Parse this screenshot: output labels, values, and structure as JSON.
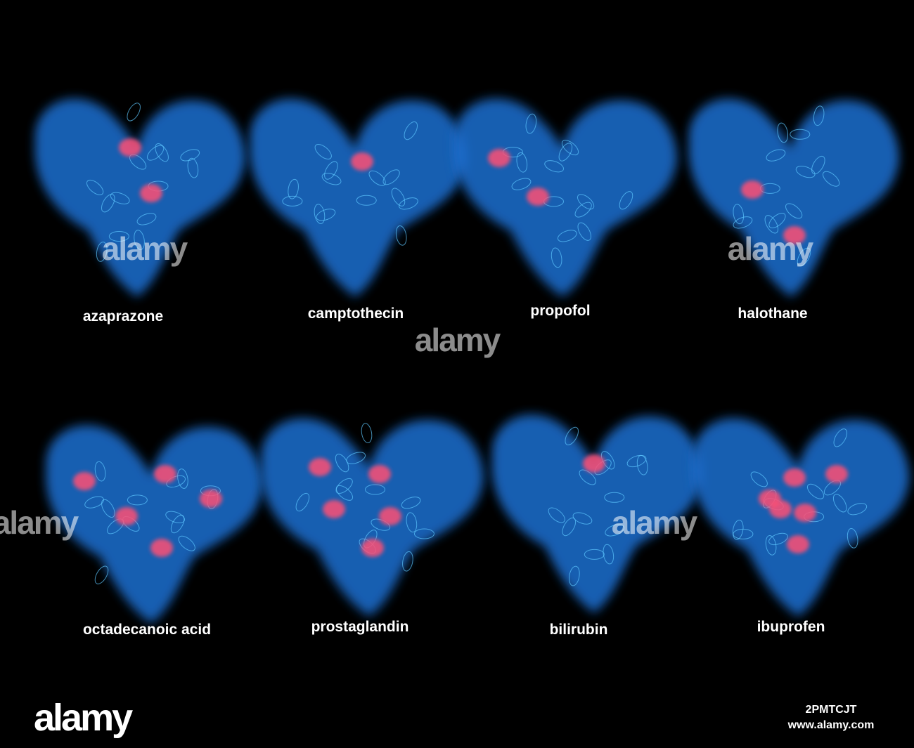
{
  "labels": [
    "azaprazone",
    "camptothecin",
    "propofol",
    "halothane",
    "octadecanoic acid",
    "prostaglandin",
    "bilirubin",
    "ibuprofen"
  ],
  "watermark": "alamy",
  "footer": {
    "logo": "alamy",
    "image_id": "2PMTCJT",
    "url": "www.alamy.com"
  }
}
